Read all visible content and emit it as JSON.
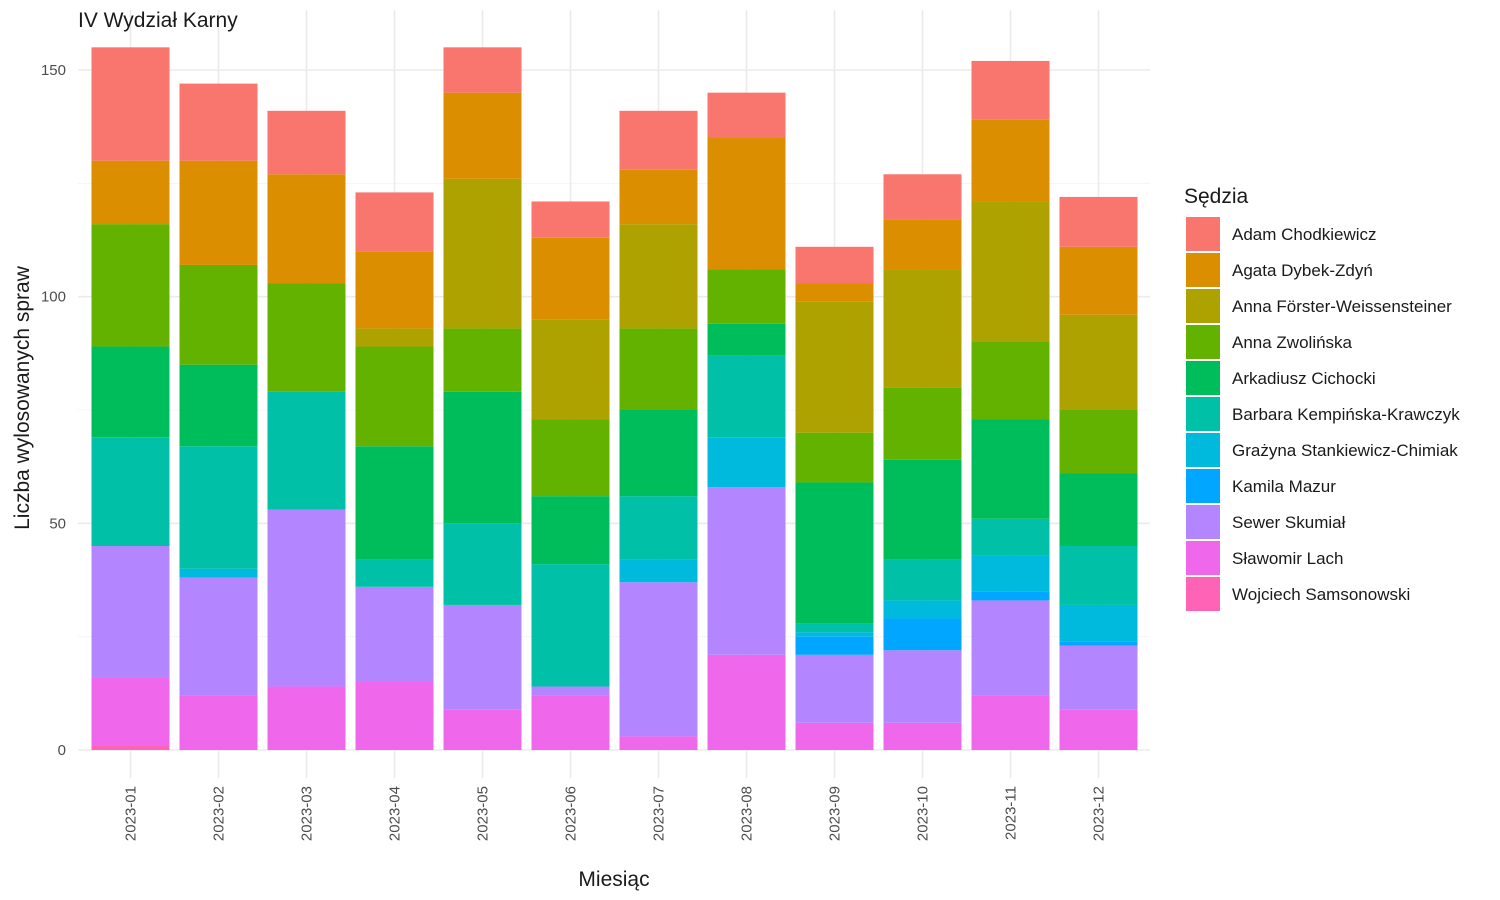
{
  "chart_data": {
    "type": "bar",
    "stacked": true,
    "title": "IV Wydział Karny",
    "xlabel": "Miesiąc",
    "ylabel": "Liczba wylosowanych spraw",
    "ylim": [
      0,
      157
    ],
    "yticks": [
      0,
      50,
      100,
      150
    ],
    "grid": true,
    "legend_title": "Sędzia",
    "legend_position": "right",
    "categories": [
      "2023-01",
      "2023-02",
      "2023-03",
      "2023-04",
      "2023-05",
      "2023-06",
      "2023-07",
      "2023-08",
      "2023-09",
      "2023-10",
      "2023-11",
      "2023-12"
    ],
    "series": [
      {
        "name": "Adam Chodkiewicz",
        "color": "#F8766D",
        "values": [
          25,
          17,
          14,
          13,
          10,
          8,
          13,
          10,
          8,
          10,
          13,
          11
        ]
      },
      {
        "name": "Agata Dybek-Zdyń",
        "color": "#DB8E00",
        "values": [
          14,
          23,
          24,
          17,
          19,
          18,
          12,
          29,
          4,
          11,
          18,
          15
        ]
      },
      {
        "name": "Anna Förster-Weissensteiner",
        "color": "#AEA200",
        "values": [
          0,
          0,
          0,
          4,
          33,
          22,
          23,
          0,
          29,
          26,
          31,
          21
        ]
      },
      {
        "name": "Anna Zwolińska",
        "color": "#64B200",
        "values": [
          27,
          22,
          24,
          22,
          14,
          17,
          18,
          12,
          11,
          16,
          17,
          14
        ]
      },
      {
        "name": "Arkadiusz Cichocki",
        "color": "#00BD5C",
        "values": [
          20,
          18,
          0,
          25,
          29,
          15,
          19,
          7,
          31,
          22,
          22,
          16
        ]
      },
      {
        "name": "Barbara Kempińska-Krawczyk",
        "color": "#00C1A7",
        "values": [
          24,
          27,
          26,
          6,
          18,
          27,
          14,
          18,
          2,
          9,
          8,
          13
        ]
      },
      {
        "name": "Grażyna Stankiewicz-Chimiak",
        "color": "#00BADE",
        "values": [
          0,
          2,
          0,
          0,
          0,
          0,
          5,
          11,
          1,
          4,
          8,
          8
        ]
      },
      {
        "name": "Kamila Mazur",
        "color": "#00A6FF",
        "values": [
          0,
          0,
          0,
          0,
          0,
          0,
          0,
          0,
          4,
          7,
          2,
          1
        ]
      },
      {
        "name": "Sewer Skumiał",
        "color": "#B385FF",
        "values": [
          29,
          26,
          39,
          21,
          23,
          2,
          34,
          37,
          15,
          16,
          21,
          14
        ]
      },
      {
        "name": "Sławomir Lach",
        "color": "#EF67EB",
        "values": [
          15,
          12,
          14,
          15,
          9,
          12,
          3,
          21,
          6,
          6,
          12,
          9
        ]
      },
      {
        "name": "Wojciech Samsonowski",
        "color": "#FF63B6",
        "values": [
          1,
          0,
          0,
          0,
          0,
          0,
          0,
          0,
          0,
          0,
          0,
          0
        ]
      }
    ]
  }
}
